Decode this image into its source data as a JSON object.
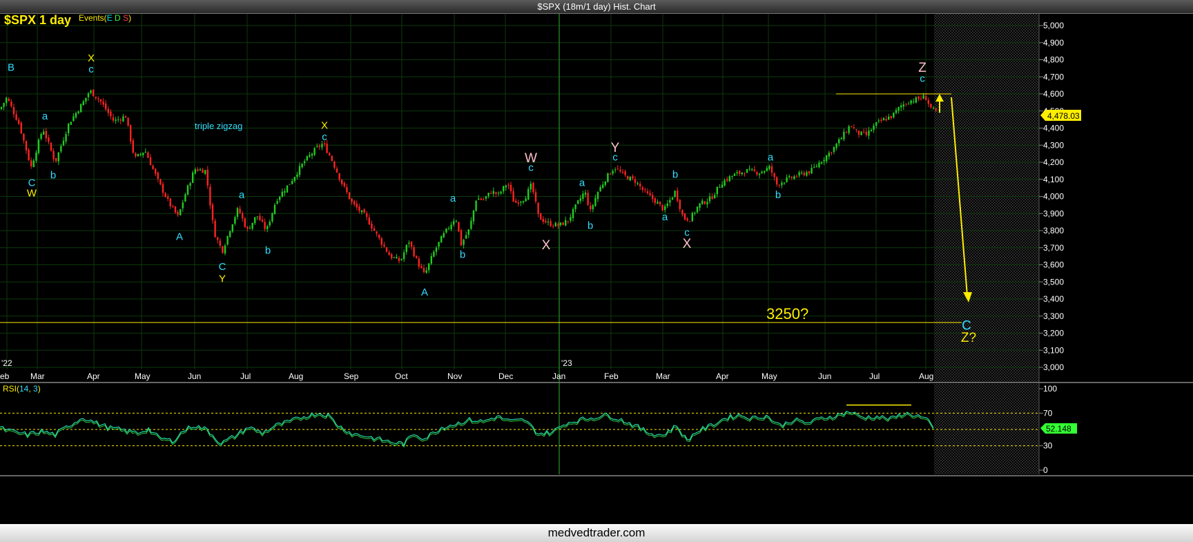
{
  "window": {
    "title": "$SPX (18m/1 day) Hist. Chart"
  },
  "footer": {
    "brand": "medvedtrader.com"
  },
  "chart_header": {
    "symbol_label": "$SPX 1 day",
    "events_prefix": "Events(",
    "events_letters": [
      "E",
      "D",
      "S"
    ],
    "events_suffix": ")",
    "events_colors": [
      "#00e6e6",
      "#33ff33",
      "#ff4444"
    ]
  },
  "colors": {
    "background": "#000000",
    "grid": "#0c3a0c",
    "up_candle": "#22cc22",
    "down_candle": "#ff2222",
    "rsi_line": "#22ddaa",
    "rsi_signal": "#33cc44",
    "wave_cyan": "#33ddff",
    "wave_yellow": "#ffee00",
    "wave_pink": "#ffc0cb",
    "projection": "#ffee00"
  },
  "chart_data": {
    "type": "candlestick",
    "y_axis_ticks": [
      "5,000",
      "4,900",
      "4,800",
      "4,700",
      "4,600",
      "4,500",
      "4,400",
      "4,300",
      "4,200",
      "4,100",
      "4,000",
      "3,900",
      "3,800",
      "3,700",
      "3,600",
      "3,500",
      "3,400",
      "3,300",
      "3,200",
      "3,100",
      "3,000"
    ],
    "ylim": [
      3000,
      5050
    ],
    "x_axis_months": [
      "eb",
      "Mar",
      "Apr",
      "May",
      "Jun",
      "Jul",
      "Aug",
      "Sep",
      "Oct",
      "Nov",
      "Dec",
      "Jan",
      "Feb",
      "Mar",
      "Apr",
      "May",
      "Jun",
      "Jul",
      "Aug"
    ],
    "year_labels": [
      "'22",
      "'23"
    ],
    "last_price_label": "4,478.03",
    "last_price": 4478.03,
    "annotation_text": "triple zigzag",
    "target_label": "3250?",
    "target_level": 3262,
    "resistance_level": 4600,
    "close_path": [
      [
        0,
        4510
      ],
      [
        10,
        4580
      ],
      [
        28,
        4420
      ],
      [
        45,
        4170
      ],
      [
        62,
        4400
      ],
      [
        80,
        4200
      ],
      [
        100,
        4430
      ],
      [
        122,
        4560
      ],
      [
        130,
        4620
      ],
      [
        145,
        4560
      ],
      [
        165,
        4440
      ],
      [
        182,
        4470
      ],
      [
        195,
        4220
      ],
      [
        210,
        4270
      ],
      [
        230,
        4080
      ],
      [
        245,
        3960
      ],
      [
        258,
        3880
      ],
      [
        268,
        4010
      ],
      [
        282,
        4160
      ],
      [
        298,
        4150
      ],
      [
        310,
        3790
      ],
      [
        322,
        3680
      ],
      [
        335,
        3830
      ],
      [
        345,
        3930
      ],
      [
        358,
        3800
      ],
      [
        372,
        3890
      ],
      [
        386,
        3800
      ],
      [
        400,
        3980
      ],
      [
        420,
        4080
      ],
      [
        440,
        4200
      ],
      [
        458,
        4280
      ],
      [
        468,
        4310
      ],
      [
        480,
        4220
      ],
      [
        495,
        4080
      ],
      [
        510,
        3960
      ],
      [
        530,
        3880
      ],
      [
        548,
        3760
      ],
      [
        565,
        3650
      ],
      [
        580,
        3620
      ],
      [
        592,
        3740
      ],
      [
        604,
        3620
      ],
      [
        615,
        3540
      ],
      [
        628,
        3670
      ],
      [
        640,
        3760
      ],
      [
        650,
        3820
      ],
      [
        660,
        3880
      ],
      [
        668,
        3720
      ],
      [
        680,
        3810
      ],
      [
        690,
        3990
      ],
      [
        700,
        3980
      ],
      [
        712,
        4030
      ],
      [
        722,
        4010
      ],
      [
        735,
        4080
      ],
      [
        745,
        3960
      ],
      [
        760,
        3990
      ],
      [
        770,
        4070
      ],
      [
        780,
        3880
      ],
      [
        795,
        3840
      ],
      [
        810,
        3830
      ],
      [
        823,
        3860
      ],
      [
        835,
        3950
      ],
      [
        847,
        4030
      ],
      [
        855,
        3910
      ],
      [
        865,
        4020
      ],
      [
        878,
        4110
      ],
      [
        890,
        4170
      ],
      [
        905,
        4120
      ],
      [
        920,
        4090
      ],
      [
        935,
        4020
      ],
      [
        950,
        3970
      ],
      [
        962,
        3920
      ],
      [
        978,
        4030
      ],
      [
        990,
        3870
      ],
      [
        1000,
        3870
      ],
      [
        1012,
        3950
      ],
      [
        1030,
        3990
      ],
      [
        1045,
        4080
      ],
      [
        1060,
        4120
      ],
      [
        1080,
        4150
      ],
      [
        1100,
        4140
      ],
      [
        1115,
        4170
      ],
      [
        1125,
        4070
      ],
      [
        1140,
        4100
      ],
      [
        1160,
        4130
      ],
      [
        1175,
        4150
      ],
      [
        1190,
        4210
      ],
      [
        1205,
        4270
      ],
      [
        1220,
        4350
      ],
      [
        1232,
        4420
      ],
      [
        1242,
        4370
      ],
      [
        1255,
        4360
      ],
      [
        1268,
        4420
      ],
      [
        1280,
        4450
      ],
      [
        1292,
        4470
      ],
      [
        1305,
        4530
      ],
      [
        1318,
        4560
      ],
      [
        1330,
        4570
      ],
      [
        1340,
        4585
      ],
      [
        1348,
        4520
      ],
      [
        1356,
        4490
      ]
    ],
    "waves": [
      {
        "t": "B",
        "x": 16,
        "v": 4735,
        "c": "cyan"
      },
      {
        "t": "a",
        "x": 65,
        "v": 4450,
        "c": "cyan"
      },
      {
        "t": "C",
        "x": 46,
        "v": 4060,
        "c": "cyan"
      },
      {
        "t": "W",
        "x": 46,
        "v": 4000,
        "c": "yellow"
      },
      {
        "t": "b",
        "x": 77,
        "v": 4105,
        "c": "cyan"
      },
      {
        "t": "X",
        "x": 132,
        "v": 4790,
        "c": "yellow"
      },
      {
        "t": "c",
        "x": 132,
        "v": 4725,
        "c": "cyan"
      },
      {
        "t": "A",
        "x": 260,
        "v": 3745,
        "c": "cyan"
      },
      {
        "t": "a",
        "x": 350,
        "v": 3990,
        "c": "cyan"
      },
      {
        "t": "C",
        "x": 322,
        "v": 3570,
        "c": "cyan"
      },
      {
        "t": "Y",
        "x": 322,
        "v": 3500,
        "c": "yellow"
      },
      {
        "t": "b",
        "x": 388,
        "v": 3665,
        "c": "cyan"
      },
      {
        "t": "X",
        "x": 470,
        "v": 4395,
        "c": "yellow"
      },
      {
        "t": "c",
        "x": 470,
        "v": 4330,
        "c": "cyan"
      },
      {
        "t": "A",
        "x": 615,
        "v": 3420,
        "c": "cyan"
      },
      {
        "t": "a",
        "x": 656,
        "v": 3970,
        "c": "cyan"
      },
      {
        "t": "b",
        "x": 670,
        "v": 3640,
        "c": "cyan"
      },
      {
        "t": "W",
        "x": 769,
        "v": 4200,
        "c": "pink"
      },
      {
        "t": "c",
        "x": 769,
        "v": 4150,
        "c": "cyan"
      },
      {
        "t": "X",
        "x": 791,
        "v": 3690,
        "c": "pink"
      },
      {
        "t": "a",
        "x": 843,
        "v": 4060,
        "c": "cyan"
      },
      {
        "t": "b",
        "x": 855,
        "v": 3810,
        "c": "cyan"
      },
      {
        "t": "Y",
        "x": 891,
        "v": 4260,
        "c": "pink"
      },
      {
        "t": "c",
        "x": 891,
        "v": 4210,
        "c": "cyan"
      },
      {
        "t": "b",
        "x": 978,
        "v": 4110,
        "c": "cyan"
      },
      {
        "t": "a",
        "x": 963,
        "v": 3860,
        "c": "cyan"
      },
      {
        "t": "c",
        "x": 995,
        "v": 3770,
        "c": "cyan"
      },
      {
        "t": "X",
        "x": 995,
        "v": 3700,
        "c": "pink"
      },
      {
        "t": "a",
        "x": 1116,
        "v": 4210,
        "c": "cyan"
      },
      {
        "t": "b",
        "x": 1127,
        "v": 3990,
        "c": "cyan"
      },
      {
        "t": "Z",
        "x": 1336,
        "v": 4730,
        "c": "pink"
      },
      {
        "t": "c",
        "x": 1336,
        "v": 4670,
        "c": "cyan"
      },
      {
        "t": "C",
        "x": 1400,
        "v": 3220,
        "c": "cyan"
      },
      {
        "t": "Z?",
        "x": 1403,
        "v": 3150,
        "c": "yellow"
      }
    ],
    "rsi": {
      "label": "RSI(",
      "period": "14",
      "smoothing": "3",
      "label_suffix": ")",
      "ticks": [
        "100",
        "70",
        "30",
        "0"
      ],
      "levels": [
        70,
        50,
        30
      ],
      "ylim": [
        0,
        100
      ],
      "last_value_label": "52.148",
      "path": [
        [
          0,
          52
        ],
        [
          20,
          47
        ],
        [
          40,
          44
        ],
        [
          60,
          48
        ],
        [
          80,
          44
        ],
        [
          100,
          55
        ],
        [
          120,
          65
        ],
        [
          140,
          58
        ],
        [
          160,
          52
        ],
        [
          180,
          49
        ],
        [
          200,
          46
        ],
        [
          215,
          51
        ],
        [
          230,
          40
        ],
        [
          250,
          36
        ],
        [
          265,
          48
        ],
        [
          280,
          55
        ],
        [
          300,
          50
        ],
        [
          320,
          33
        ],
        [
          340,
          42
        ],
        [
          360,
          53
        ],
        [
          380,
          46
        ],
        [
          400,
          55
        ],
        [
          420,
          60
        ],
        [
          440,
          66
        ],
        [
          460,
          70
        ],
        [
          475,
          68
        ],
        [
          490,
          55
        ],
        [
          510,
          45
        ],
        [
          530,
          42
        ],
        [
          550,
          38
        ],
        [
          570,
          34
        ],
        [
          585,
          33
        ],
        [
          600,
          45
        ],
        [
          615,
          39
        ],
        [
          640,
          53
        ],
        [
          660,
          57
        ],
        [
          680,
          62
        ],
        [
          700,
          60
        ],
        [
          720,
          66
        ],
        [
          740,
          60
        ],
        [
          760,
          62
        ],
        [
          780,
          45
        ],
        [
          800,
          47
        ],
        [
          820,
          58
        ],
        [
          840,
          62
        ],
        [
          860,
          65
        ],
        [
          880,
          68
        ],
        [
          900,
          62
        ],
        [
          920,
          55
        ],
        [
          940,
          46
        ],
        [
          960,
          43
        ],
        [
          980,
          55
        ],
        [
          995,
          37
        ],
        [
          1010,
          48
        ],
        [
          1030,
          55
        ],
        [
          1050,
          64
        ],
        [
          1070,
          68
        ],
        [
          1090,
          64
        ],
        [
          1110,
          67
        ],
        [
          1130,
          55
        ],
        [
          1150,
          62
        ],
        [
          1170,
          58
        ],
        [
          1190,
          64
        ],
        [
          1210,
          67
        ],
        [
          1230,
          72
        ],
        [
          1250,
          65
        ],
        [
          1270,
          66
        ],
        [
          1290,
          63
        ],
        [
          1310,
          70
        ],
        [
          1330,
          67
        ],
        [
          1345,
          60
        ],
        [
          1352,
          52
        ]
      ]
    }
  }
}
